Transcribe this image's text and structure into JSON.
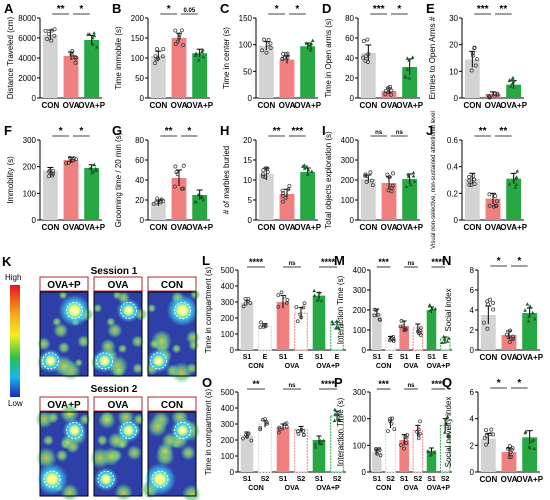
{
  "colors": {
    "CON": "#d3d3d3",
    "OVA": "#f08080",
    "OVAP": "#27a844",
    "E": "#ffffff",
    "S2": "#ffffff",
    "edge": "#666666",
    "sig": "#000000"
  },
  "heatmap": {
    "label": "K",
    "scale_high": "High",
    "scale_low": "Low",
    "session1": {
      "title": "Session 1",
      "groups": [
        "OVA+P",
        "OVA",
        "CON"
      ]
    },
    "session2": {
      "title": "Session 2",
      "groups": [
        "OVA+P",
        "OVA",
        "CON"
      ]
    }
  },
  "chart_data": [
    {
      "type": "bar",
      "panel": "A",
      "ylabel": "Distance Traveled (cm)",
      "ylim": [
        0,
        8000
      ],
      "yticks": [
        0,
        2000,
        4000,
        6000,
        8000
      ],
      "categories": [
        "CON",
        "OVA",
        "OVA+P"
      ],
      "values": [
        6300,
        4200,
        5800
      ],
      "errors": [
        500,
        400,
        450
      ],
      "sig": [
        {
          "a": 0,
          "b": 1,
          "t": "**",
          "lvl": 0
        },
        {
          "a": 1,
          "b": 2,
          "t": "*",
          "lvl": 0
        }
      ]
    },
    {
      "type": "bar",
      "panel": "B",
      "ylabel": "Time immobile (s)",
      "ylim": [
        0,
        200
      ],
      "yticks": [
        0,
        50,
        100,
        150,
        200
      ],
      "categories": [
        "CON",
        "OVA",
        "OVA+P"
      ],
      "values": [
        105,
        150,
        112
      ],
      "errors": [
        12,
        12,
        10
      ],
      "sig": [
        {
          "a": 0,
          "b": 1,
          "t": "*",
          "lvl": 0
        },
        {
          "a": 1,
          "b": 2,
          "t": "0.05",
          "lvl": 0
        }
      ]
    },
    {
      "type": "bar",
      "panel": "C",
      "ylabel": "Time in center (s)",
      "ylim": [
        0,
        150
      ],
      "yticks": [
        0,
        50,
        100,
        150
      ],
      "categories": [
        "CON",
        "OVA",
        "OVA+P"
      ],
      "values": [
        98,
        72,
        97
      ],
      "errors": [
        8,
        7,
        6
      ],
      "sig": [
        {
          "a": 0,
          "b": 1,
          "t": "*",
          "lvl": 0
        },
        {
          "a": 1,
          "b": 2,
          "t": "*",
          "lvl": 0
        }
      ]
    },
    {
      "type": "bar",
      "panel": "D",
      "ylabel": "Time in Open arms (s)",
      "ylim": [
        0,
        80
      ],
      "yticks": [
        0,
        20,
        40,
        60,
        80
      ],
      "categories": [
        "CON",
        "OVA",
        "OVA+P"
      ],
      "values": [
        45,
        7,
        31
      ],
      "errors": [
        8,
        3,
        8
      ],
      "sig": [
        {
          "a": 0,
          "b": 1,
          "t": "***",
          "lvl": 0
        },
        {
          "a": 1,
          "b": 2,
          "t": "*",
          "lvl": 0
        }
      ]
    },
    {
      "type": "bar",
      "panel": "E",
      "ylabel": "Entries to Open Arms #",
      "ylim": [
        0,
        30
      ],
      "yticks": [
        0,
        10,
        20,
        30
      ],
      "categories": [
        "CON",
        "OVA",
        "OVA+P"
      ],
      "values": [
        14.5,
        1.5,
        5
      ],
      "errors": [
        3,
        0.8,
        1.5
      ],
      "sig": [
        {
          "a": 0,
          "b": 1,
          "t": "***",
          "lvl": 0
        },
        {
          "a": 1,
          "b": 2,
          "t": "**",
          "lvl": 0
        }
      ]
    },
    {
      "type": "bar",
      "panel": "F",
      "ylabel": "Immobility (s)",
      "ylim": [
        0,
        300
      ],
      "yticks": [
        0,
        100,
        200,
        300
      ],
      "categories": [
        "CON",
        "OVA",
        "OVA+P"
      ],
      "values": [
        185,
        225,
        195
      ],
      "errors": [
        12,
        10,
        12
      ],
      "sig": [
        {
          "a": 0,
          "b": 1,
          "t": "*",
          "lvl": 0
        },
        {
          "a": 1,
          "b": 2,
          "t": "*",
          "lvl": 0
        }
      ]
    },
    {
      "type": "bar",
      "panel": "G",
      "ylabel": "Grooming time / 20 min (s)",
      "ylim": [
        0,
        80
      ],
      "yticks": [
        0,
        20,
        40,
        60,
        80
      ],
      "categories": [
        "CON",
        "OVA",
        "OVA+P"
      ],
      "values": [
        17,
        42,
        25
      ],
      "errors": [
        3,
        8,
        5
      ],
      "sig": [
        {
          "a": 0,
          "b": 1,
          "t": "**",
          "lvl": 0
        },
        {
          "a": 1,
          "b": 2,
          "t": "*",
          "lvl": 0
        }
      ]
    },
    {
      "type": "bar",
      "panel": "H",
      "ylabel": "# of marbles buried",
      "ylim": [
        0,
        20
      ],
      "yticks": [
        0,
        5,
        10,
        15,
        20
      ],
      "categories": [
        "CON",
        "OVA",
        "OVA+P"
      ],
      "values": [
        11.5,
        6.5,
        12
      ],
      "errors": [
        1.5,
        1.2,
        1
      ],
      "sig": [
        {
          "a": 0,
          "b": 1,
          "t": "**",
          "lvl": 0
        },
        {
          "a": 1,
          "b": 2,
          "t": "***",
          "lvl": 0
        }
      ]
    },
    {
      "type": "bar",
      "panel": "I",
      "ylabel": "Total objects exploration (s)",
      "ylim": [
        0,
        400
      ],
      "yticks": [
        0,
        100,
        200,
        300,
        400
      ],
      "categories": [
        "CON",
        "OVA",
        "OVA+P"
      ],
      "values": [
        205,
        185,
        205
      ],
      "errors": [
        20,
        30,
        25
      ],
      "sig": [
        {
          "a": 0,
          "b": 1,
          "t": "ns",
          "lvl": 0
        },
        {
          "a": 1,
          "b": 2,
          "t": "ns",
          "lvl": 0
        }
      ]
    },
    {
      "type": "bar",
      "panel": "J",
      "ylabel": "Visual non-selective, non-sustained attentional level",
      "ylim": [
        0,
        0.6
      ],
      "yticks": [
        0,
        0.2,
        0.4,
        0.6
      ],
      "categories": [
        "CON",
        "OVA",
        "OVA+P"
      ],
      "values": [
        0.31,
        0.16,
        0.31
      ],
      "errors": [
        0.04,
        0.04,
        0.04
      ],
      "sig": [
        {
          "a": 0,
          "b": 1,
          "t": "**",
          "lvl": 0
        },
        {
          "a": 1,
          "b": 2,
          "t": "**",
          "lvl": 0
        }
      ]
    },
    {
      "type": "bar",
      "panel": "L",
      "ylabel": "Time in compartment (s)",
      "ylim": [
        0,
        500
      ],
      "yticks": [
        0,
        100,
        200,
        300,
        400,
        500
      ],
      "pairs": [
        "S1",
        "E"
      ],
      "groups": [
        "CON",
        "OVA",
        "OVA+P"
      ],
      "values": [
        [
          295,
          150
        ],
        [
          300,
          230
        ],
        [
          340,
          160
        ]
      ],
      "errors": [
        [
          15,
          15
        ],
        [
          40,
          35
        ],
        [
          20,
          15
        ]
      ],
      "sig": [
        {
          "g": 0,
          "t": "****"
        },
        {
          "g": 1,
          "t": "ns"
        },
        {
          "g": 2,
          "t": "****"
        }
      ]
    },
    {
      "type": "bar",
      "panel": "M",
      "ylabel": "Interaction Time (s)",
      "ylim": [
        0,
        400
      ],
      "yticks": [
        0,
        100,
        200,
        300,
        400
      ],
      "pairs": [
        "S1",
        "E"
      ],
      "groups": [
        "CON",
        "OVA",
        "OVA+P"
      ],
      "values": [
        [
          185,
          60
        ],
        [
          120,
          110
        ],
        [
          200,
          55
        ]
      ],
      "errors": [
        [
          20,
          8
        ],
        [
          25,
          20
        ],
        [
          15,
          10
        ]
      ],
      "sig": [
        {
          "g": 0,
          "t": "***"
        },
        {
          "g": 1,
          "t": "ns"
        },
        {
          "g": 2,
          "t": "****"
        }
      ]
    },
    {
      "type": "bar",
      "panel": "N",
      "ylabel": "Social index",
      "ylim": [
        0,
        8
      ],
      "yticks": [
        0,
        2,
        4,
        6,
        8
      ],
      "categories": [
        "CON",
        "OVA",
        "OVA+P"
      ],
      "values": [
        3.5,
        1.5,
        3.7
      ],
      "errors": [
        0.9,
        0.4,
        0.5
      ],
      "sig": [
        {
          "a": 0,
          "b": 1,
          "t": "*",
          "lvl": 0
        },
        {
          "a": 1,
          "b": 2,
          "t": "*",
          "lvl": 0
        }
      ]
    },
    {
      "type": "bar",
      "panel": "O",
      "ylabel": "Time in compartment (s)",
      "ylim": [
        0,
        500
      ],
      "yticks": [
        0,
        100,
        200,
        300,
        400,
        500
      ],
      "pairs": [
        "S1",
        "S2"
      ],
      "groups": [
        "CON",
        "OVA",
        "OVA+P"
      ],
      "values": [
        [
          230,
          300
        ],
        [
          280,
          265
        ],
        [
          200,
          350
        ]
      ],
      "errors": [
        [
          20,
          20
        ],
        [
          20,
          20
        ],
        [
          25,
          30
        ]
      ],
      "sig": [
        {
          "g": 0,
          "t": "**"
        },
        {
          "g": 1,
          "t": "ns"
        },
        {
          "g": 2,
          "t": "****"
        }
      ]
    },
    {
      "type": "bar",
      "panel": "P",
      "ylabel": "Interaction Time (s)",
      "ylim": [
        0,
        300
      ],
      "yticks": [
        0,
        100,
        200,
        300
      ],
      "pairs": [
        "S1",
        "S2"
      ],
      "groups": [
        "CON",
        "OVA",
        "OVA+P"
      ],
      "values": [
        [
          75,
          180
        ],
        [
          120,
          155
        ],
        [
          80,
          175
        ]
      ],
      "errors": [
        [
          10,
          15
        ],
        [
          20,
          20
        ],
        [
          10,
          25
        ]
      ],
      "sig": [
        {
          "g": 0,
          "t": "***"
        },
        {
          "g": 1,
          "t": "ns"
        },
        {
          "g": 2,
          "t": "****"
        }
      ]
    },
    {
      "type": "bar",
      "panel": "Q",
      "ylabel": "Social novelty index",
      "ylim": [
        0,
        6
      ],
      "yticks": [
        0,
        2,
        4,
        6
      ],
      "categories": [
        "CON",
        "OVA",
        "OVA+P"
      ],
      "values": [
        2.5,
        1.5,
        2.6
      ],
      "errors": [
        0.4,
        0.3,
        0.5
      ],
      "sig": [
        {
          "a": 0,
          "b": 1,
          "t": "*",
          "lvl": 0
        },
        {
          "a": 1,
          "b": 2,
          "t": "*",
          "lvl": 0
        }
      ]
    }
  ]
}
